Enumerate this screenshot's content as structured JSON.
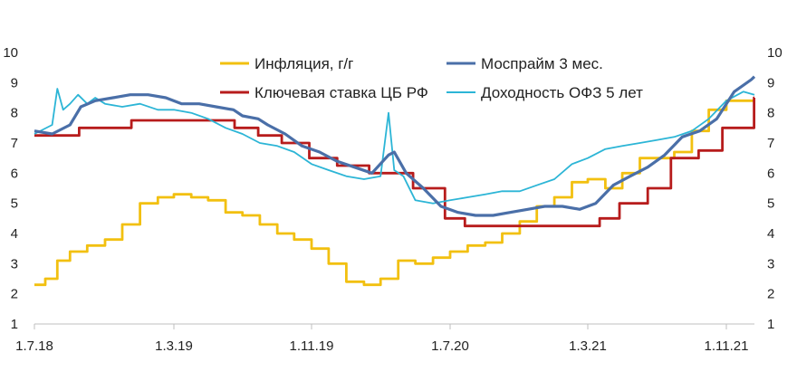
{
  "chart_data": {
    "type": "line",
    "x_ticks": [
      "1.7.18",
      "1.3.19",
      "1.11.19",
      "1.7.20",
      "1.3.21",
      "1.11.21"
    ],
    "ylim": [
      1,
      10
    ],
    "y_ticks": [
      1,
      2,
      3,
      4,
      5,
      6,
      7,
      8,
      9,
      10
    ],
    "grid": false,
    "legend_position": "top-center",
    "series": [
      {
        "name": "Инфляция, г/г",
        "color": "#F2C010",
        "style": "step",
        "x": [
          "2018-07-01",
          "2018-07-20",
          "2018-08-10",
          "2018-09-01",
          "2018-10-01",
          "2018-11-01",
          "2018-12-01",
          "2019-01-01",
          "2019-02-01",
          "2019-03-01",
          "2019-04-01",
          "2019-05-01",
          "2019-06-01",
          "2019-07-01",
          "2019-08-01",
          "2019-09-01",
          "2019-10-01",
          "2019-11-01",
          "2019-12-01",
          "2020-01-01",
          "2020-02-01",
          "2020-03-01",
          "2020-04-01",
          "2020-05-01",
          "2020-06-01",
          "2020-07-01",
          "2020-08-01",
          "2020-09-01",
          "2020-10-01",
          "2020-11-01",
          "2020-12-01",
          "2021-01-01",
          "2021-02-01",
          "2021-03-01",
          "2021-04-01",
          "2021-05-01",
          "2021-06-01",
          "2021-07-01",
          "2021-08-01",
          "2021-09-01",
          "2021-10-01",
          "2021-11-01",
          "2021-12-01"
        ],
        "y": [
          2.3,
          2.5,
          3.1,
          3.4,
          3.6,
          3.8,
          4.3,
          5.0,
          5.2,
          5.3,
          5.2,
          5.1,
          4.7,
          4.6,
          4.3,
          4.0,
          3.8,
          3.5,
          3.0,
          2.4,
          2.3,
          2.5,
          3.1,
          3.0,
          3.2,
          3.4,
          3.6,
          3.7,
          4.0,
          4.4,
          4.9,
          5.2,
          5.7,
          5.8,
          5.5,
          6.0,
          6.5,
          6.5,
          6.7,
          7.4,
          8.1,
          8.4,
          8.4
        ]
      },
      {
        "name": "Ключевая ставка ЦБ РФ",
        "color": "#B71C1C",
        "style": "step",
        "x": [
          "2018-07-01",
          "2018-09-17",
          "2018-12-17",
          "2019-06-17",
          "2019-07-29",
          "2019-09-09",
          "2019-10-28",
          "2019-12-16",
          "2020-02-10",
          "2020-04-27",
          "2020-06-22",
          "2020-07-27",
          "2021-03-22",
          "2021-04-26",
          "2021-06-15",
          "2021-07-26",
          "2021-09-13",
          "2021-10-25",
          "2021-12-20"
        ],
        "y": [
          7.25,
          7.5,
          7.75,
          7.5,
          7.25,
          7.0,
          6.5,
          6.25,
          6.0,
          5.5,
          4.5,
          4.25,
          4.5,
          5.0,
          5.5,
          6.5,
          6.75,
          7.5,
          8.5
        ]
      },
      {
        "name": "Моспрайм 3 мес.",
        "color": "#4A6FA8",
        "style": "line",
        "x": [
          "2018-07-01",
          "2018-08-01",
          "2018-09-01",
          "2018-09-20",
          "2018-10-15",
          "2018-11-15",
          "2018-12-15",
          "2019-01-15",
          "2019-02-15",
          "2019-03-15",
          "2019-04-15",
          "2019-05-15",
          "2019-06-15",
          "2019-07-01",
          "2019-07-29",
          "2019-08-15",
          "2019-09-15",
          "2019-10-15",
          "2019-11-15",
          "2019-12-15",
          "2020-01-15",
          "2020-02-15",
          "2020-03-15",
          "2020-03-25",
          "2020-04-15",
          "2020-05-15",
          "2020-06-15",
          "2020-07-15",
          "2020-08-15",
          "2020-09-15",
          "2020-10-15",
          "2020-11-15",
          "2020-12-15",
          "2021-01-15",
          "2021-02-15",
          "2021-03-15",
          "2021-04-15",
          "2021-05-15",
          "2021-06-15",
          "2021-07-15",
          "2021-08-15",
          "2021-09-15",
          "2021-10-15",
          "2021-11-15",
          "2021-12-15",
          "2021-12-28"
        ],
        "y": [
          7.4,
          7.3,
          7.6,
          8.2,
          8.4,
          8.5,
          8.6,
          8.6,
          8.5,
          8.3,
          8.3,
          8.2,
          8.1,
          7.9,
          7.8,
          7.6,
          7.3,
          6.9,
          6.7,
          6.4,
          6.2,
          6.0,
          6.6,
          6.7,
          6.0,
          5.5,
          4.9,
          4.7,
          4.6,
          4.6,
          4.7,
          4.8,
          4.9,
          4.9,
          4.8,
          5.0,
          5.6,
          5.9,
          6.2,
          6.6,
          7.2,
          7.4,
          7.8,
          8.7,
          9.1,
          9.2
        ]
      },
      {
        "name": "Доходность ОФЗ 5 лет",
        "color": "#2CB5D6",
        "style": "line",
        "x": [
          "2018-07-01",
          "2018-08-01",
          "2018-08-10",
          "2018-08-20",
          "2018-09-01",
          "2018-09-15",
          "2018-10-01",
          "2018-10-15",
          "2018-11-01",
          "2018-12-01",
          "2019-01-01",
          "2019-02-01",
          "2019-03-01",
          "2019-04-01",
          "2019-05-01",
          "2019-06-01",
          "2019-07-01",
          "2019-08-01",
          "2019-09-01",
          "2019-10-01",
          "2019-11-01",
          "2019-12-01",
          "2020-01-01",
          "2020-02-01",
          "2020-03-01",
          "2020-03-15",
          "2020-03-25",
          "2020-04-10",
          "2020-05-01",
          "2020-06-01",
          "2020-07-01",
          "2020-08-01",
          "2020-09-01",
          "2020-10-01",
          "2020-11-01",
          "2020-12-01",
          "2021-01-01",
          "2021-02-01",
          "2021-03-01",
          "2021-04-01",
          "2021-05-01",
          "2021-06-01",
          "2021-07-01",
          "2021-08-01",
          "2021-09-01",
          "2021-10-01",
          "2021-11-01",
          "2021-12-01",
          "2021-12-28"
        ],
        "y": [
          7.3,
          7.6,
          8.8,
          8.1,
          8.3,
          8.6,
          8.3,
          8.5,
          8.3,
          8.2,
          8.3,
          8.1,
          8.1,
          8.0,
          7.8,
          7.5,
          7.3,
          7.0,
          6.9,
          6.7,
          6.3,
          6.1,
          5.9,
          5.8,
          5.9,
          8.0,
          6.1,
          5.9,
          5.1,
          5.0,
          5.1,
          5.2,
          5.3,
          5.4,
          5.4,
          5.6,
          5.8,
          6.3,
          6.5,
          6.8,
          6.9,
          7.0,
          7.1,
          7.2,
          7.4,
          7.8,
          8.4,
          8.7,
          8.6
        ]
      }
    ]
  }
}
